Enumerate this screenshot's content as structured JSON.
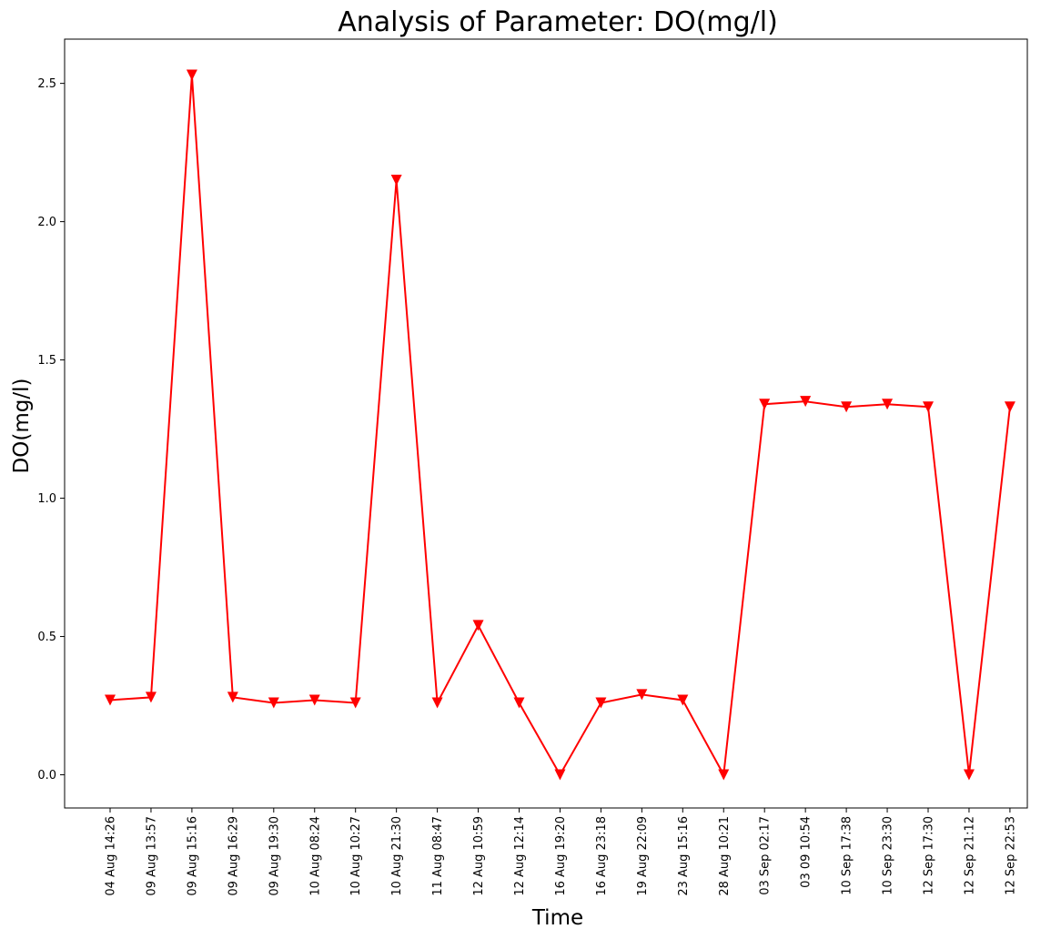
{
  "chart_data": {
    "type": "line",
    "title": "Analysis of Parameter: DO(mg/l)",
    "xlabel": "Time",
    "ylabel": "DO(mg/l)",
    "ylim": [
      -0.12,
      2.66
    ],
    "yticks": [
      "0.0",
      "0.5",
      "1.0",
      "1.5",
      "2.0",
      "2.5"
    ],
    "ytick_values": [
      0,
      0.5,
      1.0,
      1.5,
      2.0,
      2.5
    ],
    "grid": false,
    "legend": "none",
    "categories": [
      "04 Aug 14:26",
      "09 Aug 13:57",
      "09 Aug 15:16",
      "09 Aug 16:29",
      "09 Aug 19:30",
      "10 Aug 08:24",
      "10 Aug 10:27",
      "10 Aug 21:30",
      "11 Aug 08:47",
      "12 Aug 10:59",
      "12 Aug 12:14",
      "16 Aug 19:20",
      "16 Aug 23:18",
      "19 Aug 22:09",
      "23 Aug 15:16",
      "28 Aug 10:21",
      "03 Sep 02:17",
      "03 09 10:54",
      "10 Sep 17:38",
      "10 Sep 23:30",
      "12 Sep 17:30",
      "12 Sep 21:12",
      "12 Sep 22:53"
    ],
    "series": [
      {
        "color": "#ff0000",
        "marker": "triangle-down",
        "values": [
          0.27,
          0.28,
          2.53,
          0.28,
          0.26,
          0.27,
          0.26,
          2.15,
          0.26,
          0.54,
          0.26,
          0.0,
          0.26,
          0.29,
          0.27,
          0.0,
          1.34,
          1.35,
          1.33,
          1.34,
          1.33,
          0.0,
          1.33
        ]
      }
    ]
  }
}
